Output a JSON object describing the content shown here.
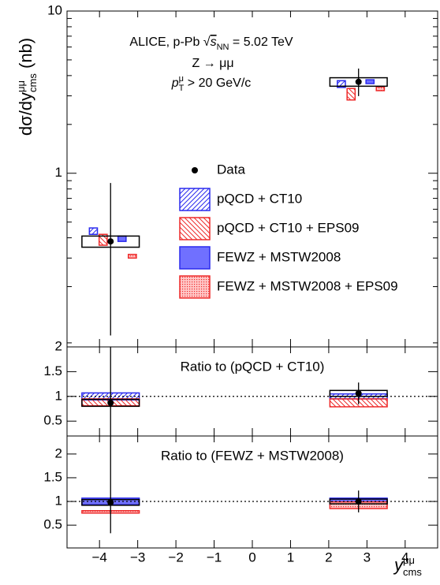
{
  "chart_data": [
    {
      "type": "errorbar",
      "ylabel": [
        "dσ/dy",
        "μμ",
        "cms",
        " (nb)"
      ],
      "annotations": [
        [
          "ALICE, p-Pb ",
          "√",
          "s",
          "NN",
          " = 5.02 TeV"
        ],
        [
          "Z → μμ"
        ],
        [
          "p",
          "μ",
          "T",
          " > 20 GeV/c"
        ]
      ],
      "yscale": "log",
      "xlim": [
        -4.85,
        4.85
      ],
      "ylim": [
        0.085,
        10
      ],
      "yticks": [
        1,
        10
      ],
      "yticks_minor": [
        0.09,
        0.2,
        0.3,
        0.4,
        0.5,
        0.6,
        0.7,
        0.8,
        0.9,
        2,
        3,
        4,
        5,
        6,
        7,
        8,
        9
      ],
      "x": [
        -3.71,
        2.78
      ],
      "x_edges": [
        [
          -4.46,
          -2.96
        ],
        [
          2.03,
          3.53
        ]
      ],
      "legend": "center",
      "series": [
        {
          "name": "Data",
          "color": "#000000",
          "style": "marker",
          "values": [
            0.38,
            3.66
          ],
          "error_low": [
            0.28,
            0.67
          ],
          "error_high": [
            0.49,
            0.76
          ],
          "syst": [
            0.03,
            0.22
          ]
        },
        {
          "name": "pQCD + CT10",
          "color": "#2a2aee",
          "style": "hatch-forward",
          "values": [
            0.44,
            3.55
          ],
          "errors": [
            0.02,
            0.17
          ]
        },
        {
          "name": "pQCD + CT10 + EPS09",
          "color": "#ee2a2a",
          "style": "hatch-back",
          "values": [
            0.39,
            3.08
          ],
          "errors": [
            0.03,
            0.25
          ]
        },
        {
          "name": "FEWZ + MSTW2008",
          "color": "#2a2aee",
          "style": "fill",
          "fill": "#7070ff",
          "values": [
            0.395,
            3.67
          ],
          "errors": [
            0.015,
            0.1
          ]
        },
        {
          "name": "FEWZ + MSTW2008 + EPS09",
          "color": "#ee2a2a",
          "style": "dots",
          "fill": "#ffc8c8",
          "values": [
            0.308,
            3.32
          ],
          "errors": [
            0.008,
            0.09
          ]
        }
      ]
    },
    {
      "type": "errorbar",
      "label": "Ratio to (pQCD + CT10)",
      "reference": 1,
      "xlim": [
        -4.85,
        4.85
      ],
      "ylim": [
        0.2,
        2.0
      ],
      "yticks": [
        0.5,
        1,
        1.5,
        2
      ],
      "x": [
        -3.71,
        2.78
      ],
      "x_edges": [
        [
          -4.46,
          -2.96
        ],
        [
          2.03,
          3.53
        ]
      ],
      "series": [
        {
          "color": "#000000",
          "style": "marker",
          "values": [
            0.87,
            1.06
          ],
          "error_low": [
            0.69,
            0.22
          ],
          "error_high": [
            1.13,
            0.22
          ],
          "syst": [
            0.07,
            0.06
          ]
        },
        {
          "color": "#2a2aee",
          "style": "hatch-forward",
          "values": [
            1.0,
            1.0
          ],
          "errors": [
            0.07,
            0.05
          ]
        },
        {
          "color": "#ee2a2a",
          "style": "hatch-back",
          "values": [
            0.88,
            0.87
          ],
          "errors": [
            0.07,
            0.08
          ]
        }
      ]
    },
    {
      "type": "errorbar",
      "label": "Ratio to (FEWZ + MSTW2008)",
      "reference": 1,
      "xlim": [
        -4.85,
        4.85
      ],
      "ylim": [
        0.02,
        2.38
      ],
      "yticks": [
        0.5,
        1,
        1.5,
        2
      ],
      "x": [
        -3.71,
        2.78
      ],
      "x_edges": [
        [
          -4.46,
          -2.96
        ],
        [
          2.03,
          3.53
        ]
      ],
      "xticks": [
        {
          "value": -4,
          "label": "−4"
        },
        {
          "value": -3,
          "label": "−3"
        },
        {
          "value": -2,
          "label": "−2"
        },
        {
          "value": -1,
          "label": "−1"
        },
        0,
        1,
        2,
        3,
        4
      ],
      "xlabel": [
        "y",
        "μμ",
        "cms"
      ],
      "series": [
        {
          "color": "#000000",
          "style": "marker",
          "values": [
            0.98,
            1.0
          ],
          "error_low": [
            0.65,
            0.23
          ],
          "error_high": [
            1.4,
            0.23
          ],
          "syst": [
            0.06,
            0.05
          ]
        },
        {
          "color": "#2a2aee",
          "style": "fill",
          "fill": "#7070ff",
          "values": [
            1.0,
            1.0
          ],
          "errors": [
            0.07,
            0.07
          ]
        },
        {
          "color": "#ee2a2a",
          "style": "dots",
          "fill": "#ffc8c8",
          "values": [
            0.78,
            0.92
          ],
          "errors": [
            0.025,
            0.07
          ]
        }
      ]
    }
  ]
}
